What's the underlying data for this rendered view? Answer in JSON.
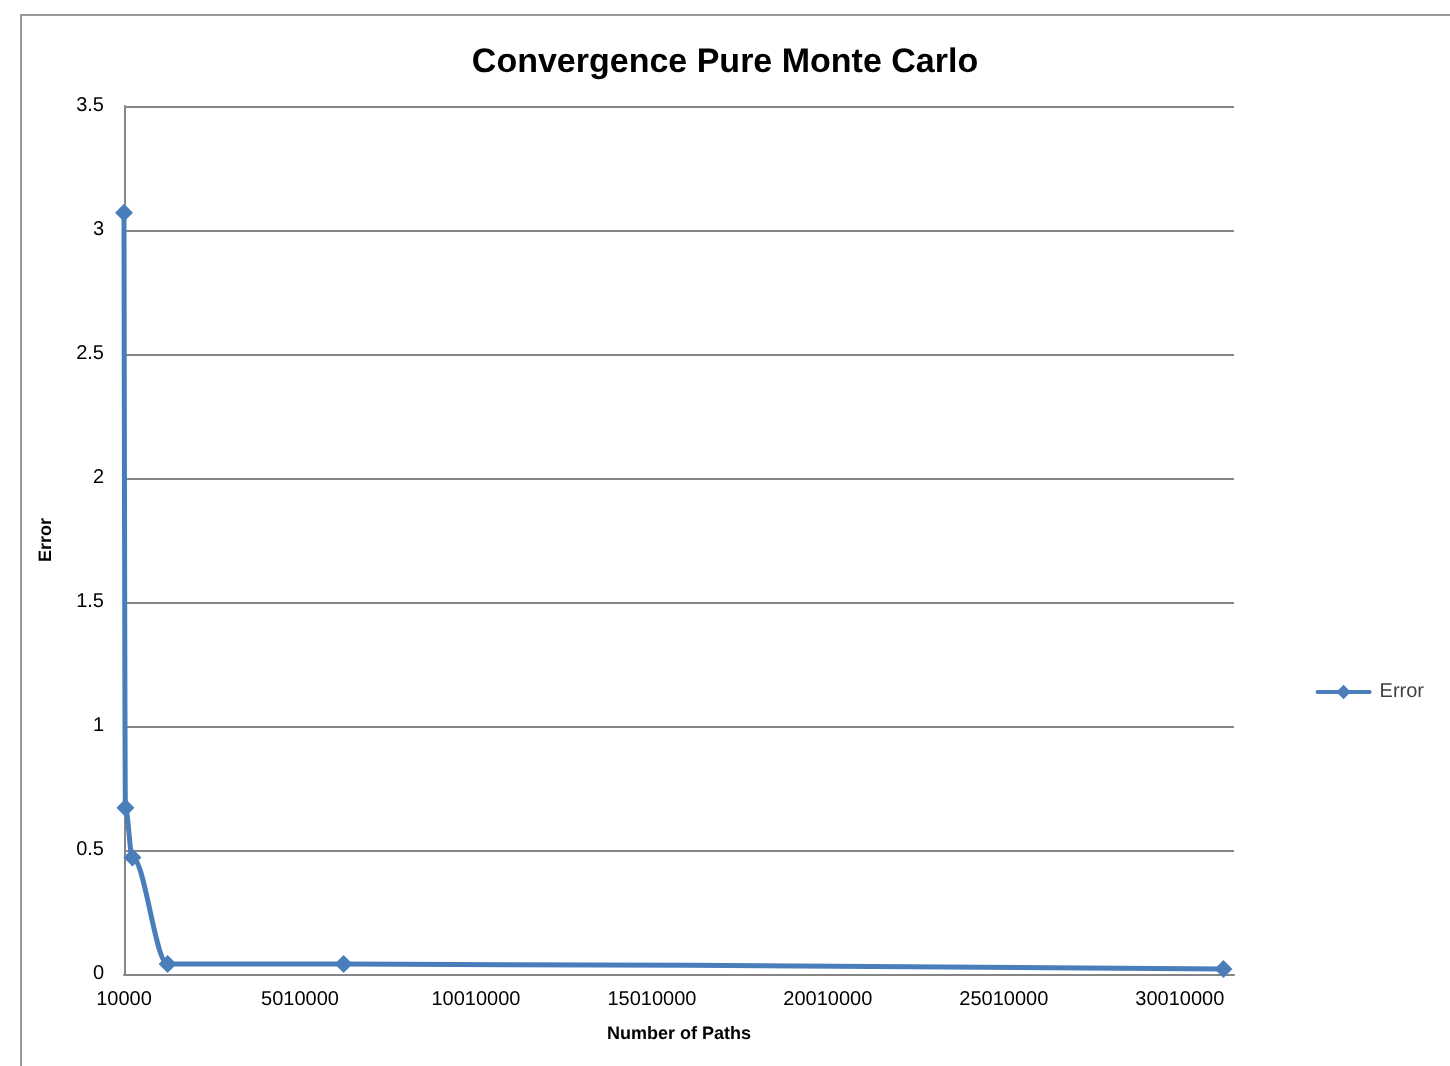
{
  "chart_data": {
    "type": "line",
    "title": "Convergence Pure Monte Carlo",
    "xlabel": "Number of Paths",
    "ylabel": "Error",
    "x": [
      10000,
      50000,
      250000,
      1250000,
      6250000,
      31250000
    ],
    "series": [
      {
        "name": "Error",
        "color": "#4a7ebb",
        "values": [
          3.07,
          0.67,
          0.47,
          0.04,
          0.04,
          0.02
        ]
      }
    ],
    "xlim": [
      10000,
      31550000
    ],
    "xticks": [
      10000,
      5010000,
      10010000,
      15010000,
      20010000,
      25010000,
      30010000
    ],
    "ylim": [
      0,
      3.5
    ],
    "yticks": [
      0,
      0.5,
      1,
      1.5,
      2,
      2.5,
      3,
      3.5
    ],
    "grid": "y",
    "legend": "right",
    "marker": "diamond",
    "line_style": "solid"
  }
}
